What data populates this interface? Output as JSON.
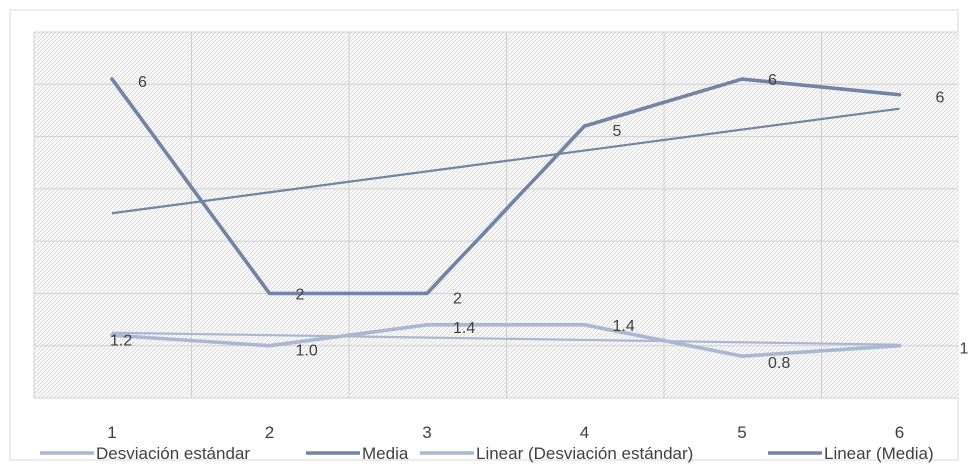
{
  "chart_data": {
    "type": "line",
    "categories": [
      "1",
      "2",
      "3",
      "4",
      "5",
      "6"
    ],
    "x": [
      1,
      2,
      3,
      4,
      5,
      6
    ],
    "ylim": [
      0,
      7
    ],
    "grid": true,
    "legend_position": "bottom",
    "series": [
      {
        "name": "Desviación estándar",
        "values": [
          1.2,
          1.0,
          1.4,
          1.4,
          0.8,
          1.0
        ],
        "labels": [
          "1.2",
          "1.0",
          "1.4",
          "1.4",
          "0.8",
          "1.0"
        ],
        "color": "#a9b7d3"
      },
      {
        "name": "Media",
        "values": [
          6.1,
          2.0,
          2.0,
          5.2,
          6.1,
          5.8
        ],
        "labels": [
          "6",
          "2",
          "2",
          "5",
          "6",
          "6"
        ],
        "color": "#7084a6"
      }
    ],
    "trendlines": [
      {
        "name": "Linear (Desviación estándar)",
        "of": "Desviación estándar",
        "color": "#a9b7d3"
      },
      {
        "name": "Linear (Media)",
        "of": "Media",
        "color": "#7084a6"
      }
    ]
  }
}
